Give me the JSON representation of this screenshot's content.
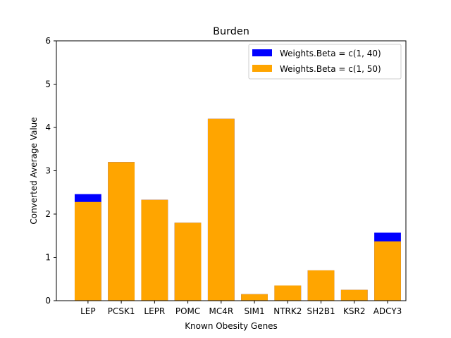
{
  "chart_data": {
    "type": "bar",
    "title": "Burden",
    "xlabel": "Known Obesity Genes",
    "ylabel": "Converted Average Value",
    "ylim": [
      0,
      6
    ],
    "yticks": [
      0,
      1,
      2,
      3,
      4,
      5,
      6
    ],
    "grid": false,
    "legend_position": "top-right",
    "categories": [
      "LEP",
      "PCSK1",
      "LEPR",
      "POMC",
      "MC4R",
      "SIM1",
      "NTRK2",
      "SH2B1",
      "KSR2",
      "ADCY3"
    ],
    "series": [
      {
        "name": "Weights.Beta = c(1, 40)",
        "color": "#0000ff",
        "values": [
          2.46,
          3.2,
          2.33,
          1.8,
          4.2,
          0.15,
          0.35,
          0.7,
          0.25,
          1.57
        ]
      },
      {
        "name": "Weights.Beta = c(1, 50)",
        "color": "#ffa500",
        "values": [
          2.28,
          3.2,
          2.33,
          1.8,
          4.2,
          0.15,
          0.35,
          0.7,
          0.25,
          1.37
        ]
      }
    ]
  }
}
